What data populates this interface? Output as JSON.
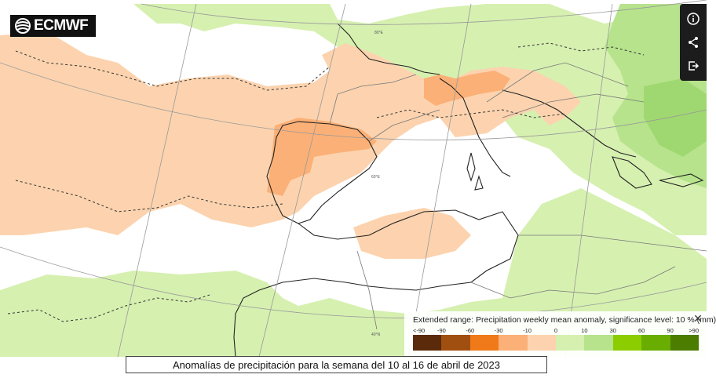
{
  "brand": {
    "logo_text": "ECMWF"
  },
  "toolbar": {
    "buttons": [
      {
        "name": "info",
        "icon": "info-icon"
      },
      {
        "name": "share",
        "icon": "share-icon"
      },
      {
        "name": "export",
        "icon": "export-icon"
      }
    ]
  },
  "map": {
    "grid_labels": [
      "80°E",
      "60°E",
      "40°N"
    ],
    "colors": {
      "water": "#ffffff",
      "dry_light": "#fcd3ae",
      "dry_medium": "#fbb077",
      "wet_light": "#d6f0b0",
      "wet_medium": "#b6e38c",
      "coastline": "#222222",
      "border": "#777777",
      "graticule": "#999999",
      "significance_contour": "#333333"
    }
  },
  "legend": {
    "title": "Extended range: Precipitation weekly mean anomaly, significance level: 10 % (mm)",
    "close_icon": "close-icon",
    "ticks": [
      "<-90",
      "-90",
      "-60",
      "-30",
      "-10",
      "0",
      "10",
      "30",
      "60",
      "90",
      ">90"
    ],
    "swatches": [
      "#5a2a0a",
      "#a14f10",
      "#f07a1a",
      "#fbb077",
      "#fcd3ae",
      "#d6f0b0",
      "#b6e38c",
      "#8ccd00",
      "#68ad00",
      "#4c7d00"
    ]
  },
  "caption": {
    "text": "Anomalías de precipitación para la semana del 10 al 16 de abril de 2023"
  }
}
